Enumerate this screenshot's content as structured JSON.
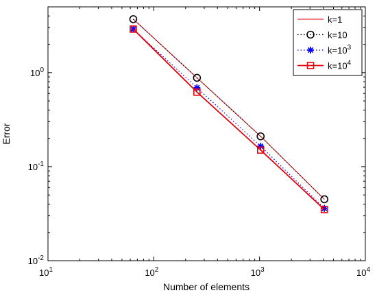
{
  "chart_data": {
    "type": "line",
    "title": "",
    "xlabel": "Number of elements",
    "ylabel": "Error",
    "x_scale": "log",
    "y_scale": "log",
    "xlim": [
      10,
      10000
    ],
    "ylim": [
      0.01,
      5
    ],
    "x": [
      64,
      256,
      1024,
      4096
    ],
    "x_ticks": [
      {
        "value": 10,
        "base": "10",
        "exp": "1"
      },
      {
        "value": 100,
        "base": "10",
        "exp": "2"
      },
      {
        "value": 1000,
        "base": "10",
        "exp": "3"
      },
      {
        "value": 10000,
        "base": "10",
        "exp": "4"
      }
    ],
    "y_ticks": [
      {
        "value": 0.01,
        "base": "10",
        "exp": "-2"
      },
      {
        "value": 0.1,
        "base": "10",
        "exp": "-1"
      },
      {
        "value": 1,
        "base": "10",
        "exp": "0"
      }
    ],
    "grid": false,
    "legend_position": "top-right",
    "series": [
      {
        "name": "k=1",
        "label_base": "k=1",
        "label_exp": "",
        "values": [
          3.7,
          0.88,
          0.21,
          0.045
        ],
        "color": "#e8000b",
        "line": "solid",
        "marker": "none"
      },
      {
        "name": "k=10",
        "label_base": "k=10",
        "label_exp": "",
        "values": [
          3.7,
          0.88,
          0.21,
          0.045
        ],
        "color": "#000000",
        "line": "dotted",
        "marker": "circle"
      },
      {
        "name": "k=10^3",
        "label_base": "k=10",
        "label_exp": "3",
        "values": [
          2.9,
          0.69,
          0.165,
          0.036
        ],
        "color": "#0000ff",
        "line": "dotted",
        "marker": "asterisk"
      },
      {
        "name": "k=10^4",
        "label_base": "k=10",
        "label_exp": "4",
        "values": [
          2.9,
          0.62,
          0.15,
          0.035
        ],
        "color": "#e8000b",
        "line": "solid-thick",
        "marker": "square"
      }
    ]
  }
}
